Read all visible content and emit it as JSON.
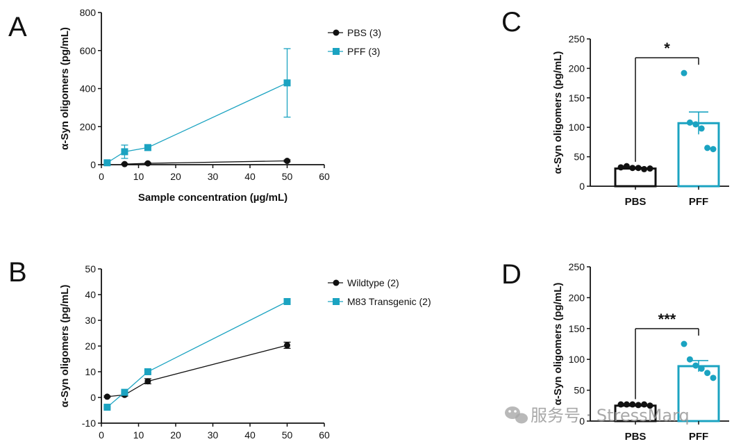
{
  "colors": {
    "black": "#111111",
    "teal": "#1ba3c1",
    "axis": "#111111"
  },
  "watermark": {
    "text": "服务号 · StressMarq",
    "icon": "wechat-icon"
  },
  "chart_data": [
    {
      "panel": "A",
      "type": "line",
      "xlabel": "Sample concentration (µg/mL)",
      "ylabel": "α-Syn oligomers (pg/mL)",
      "xlim": [
        0,
        60
      ],
      "ylim": [
        0,
        800
      ],
      "xticks": [
        "0",
        "10",
        "20",
        "30",
        "40",
        "50",
        "60"
      ],
      "yticks": [
        "0",
        "200",
        "400",
        "600",
        "800"
      ],
      "legend": [
        "PBS (3)",
        "PFF (3)"
      ],
      "series": [
        {
          "name": "PBS (3)",
          "color": "black",
          "marker": "circle",
          "x": [
            6.25,
            12.5,
            50
          ],
          "y": [
            3,
            7,
            20
          ],
          "err": [
            3,
            3,
            5
          ]
        },
        {
          "name": "PFF (3)",
          "color": "teal",
          "marker": "square",
          "x": [
            1.56,
            6.25,
            12.5,
            50
          ],
          "y": [
            10,
            68,
            90,
            430
          ],
          "err": [
            5,
            35,
            15,
            180
          ]
        }
      ]
    },
    {
      "panel": "B",
      "type": "line",
      "xlabel": "Sample concentration (µg/mL)",
      "ylabel": "α-Syn oligomers (pg/mL)",
      "xlim": [
        0,
        60
      ],
      "ylim": [
        -10,
        50
      ],
      "xticks": [
        "0",
        "10",
        "20",
        "30",
        "40",
        "50",
        "60"
      ],
      "yticks": [
        "-10",
        "0",
        "10",
        "20",
        "30",
        "40",
        "50"
      ],
      "legend": [
        "Wildtype (2)",
        "M83 Transgenic (2)"
      ],
      "series": [
        {
          "name": "Wildtype (2)",
          "color": "black",
          "marker": "circle",
          "x": [
            1.56,
            6.25,
            12.5,
            50
          ],
          "y": [
            0.3,
            1,
            6.3,
            20.3
          ],
          "err": [
            0.3,
            0.5,
            1,
            1.2
          ]
        },
        {
          "name": "M83 Transgenic (2)",
          "color": "teal",
          "marker": "square",
          "x": [
            1.56,
            6.25,
            12.5,
            50
          ],
          "y": [
            -3.8,
            2,
            10,
            37.3
          ],
          "err": [
            0.3,
            0.3,
            0.5,
            0.8
          ]
        }
      ]
    },
    {
      "panel": "C",
      "type": "bar",
      "ylabel": "α-Syn oligomers (pg/mL)",
      "ylim": [
        0,
        250
      ],
      "yticks": [
        "0",
        "50",
        "100",
        "150",
        "200",
        "250"
      ],
      "categories": [
        "PBS",
        "PFF"
      ],
      "values": [
        30,
        107
      ],
      "sem": [
        2,
        19
      ],
      "points": [
        [
          32,
          34,
          31,
          31,
          29,
          30
        ],
        [
          192,
          108,
          105,
          98,
          65,
          63
        ]
      ],
      "bar_colors": [
        "black",
        "teal"
      ],
      "significance": "*"
    },
    {
      "panel": "D",
      "type": "bar",
      "ylabel": "α-Syn oligomers (pg/mL)",
      "ylim": [
        0,
        250
      ],
      "yticks": [
        "0",
        "50",
        "100",
        "150",
        "200",
        "250"
      ],
      "categories": [
        "PBS",
        "PFF"
      ],
      "values": [
        25,
        89
      ],
      "sem": [
        1.5,
        9
      ],
      "points": [
        [
          27,
          27,
          27,
          26,
          27,
          25
        ],
        [
          125,
          100,
          90,
          85,
          78,
          70
        ]
      ],
      "bar_colors": [
        "black",
        "teal"
      ],
      "significance": "***"
    }
  ]
}
